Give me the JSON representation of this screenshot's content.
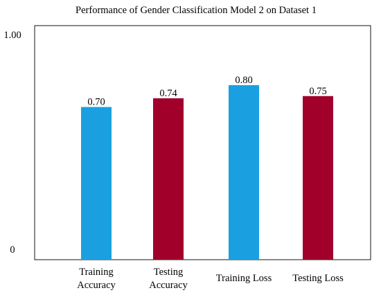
{
  "chart_data": {
    "type": "bar",
    "title": "Performance of Gender Classification Model 2 on Dataset 1",
    "categories": [
      [
        "Training",
        "Accuracy"
      ],
      [
        "Testing",
        "Accuracy"
      ],
      [
        "Training Loss"
      ],
      [
        "Testing Loss"
      ]
    ],
    "values": [
      0.7,
      0.74,
      0.8,
      0.75
    ],
    "data_labels": [
      "0.70",
      "0.74",
      "0.80",
      "0.75"
    ],
    "bar_colors": [
      "#1aa0e0",
      "#a0002a",
      "#1aa0e0",
      "#a0002a"
    ],
    "ylim": [
      0,
      1.0
    ],
    "yticks": [
      "0",
      "1.00"
    ],
    "grid": false,
    "legend": "none"
  }
}
